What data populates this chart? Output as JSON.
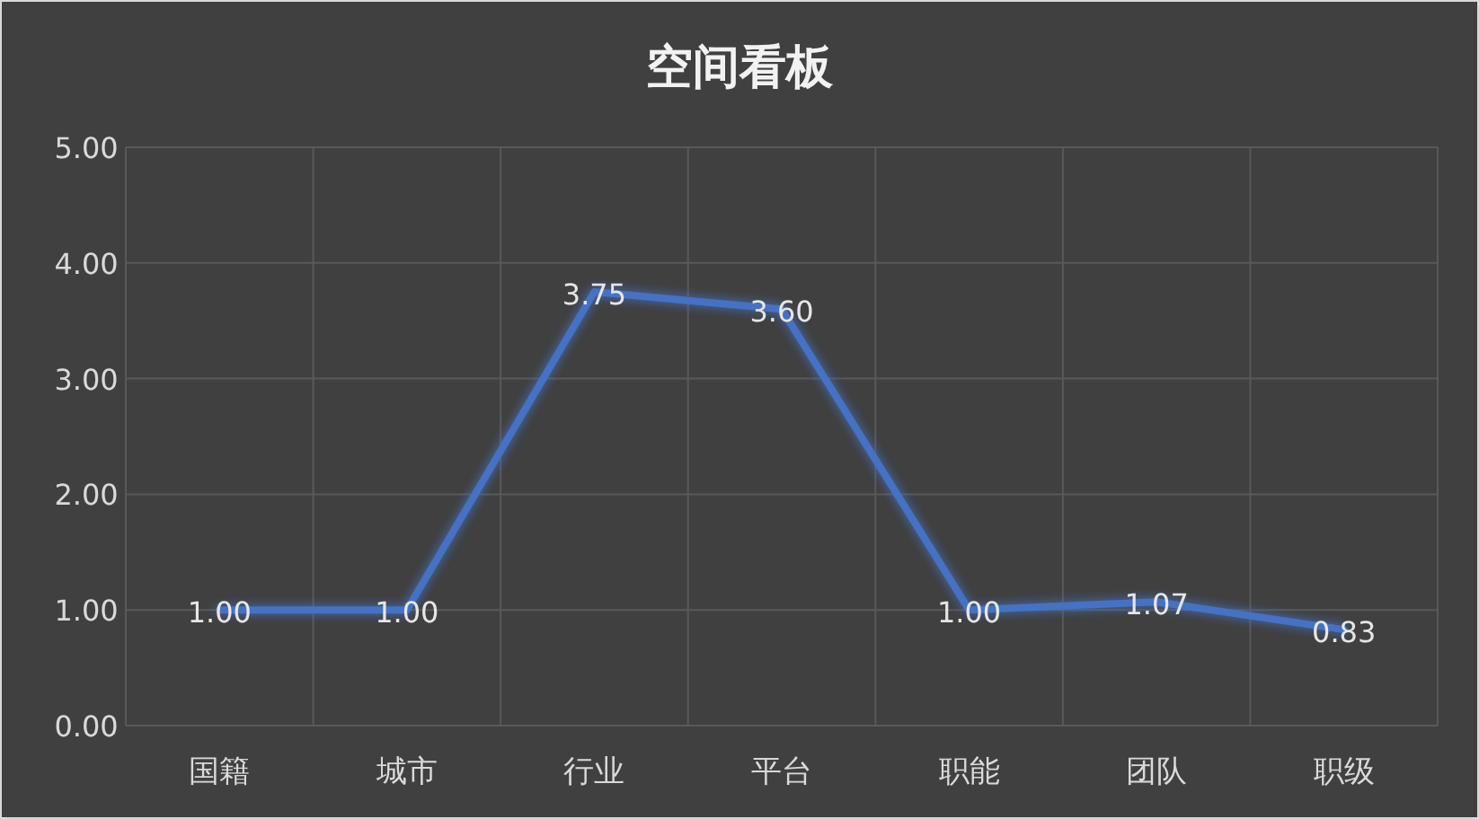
{
  "chart_data": {
    "type": "line",
    "title": "空间看板",
    "categories": [
      "国籍",
      "城市",
      "行业",
      "平台",
      "职能",
      "团队",
      "职级"
    ],
    "values": [
      1.0,
      1.0,
      3.75,
      3.6,
      1.0,
      1.07,
      0.83
    ],
    "value_labels": [
      "1.00",
      "1.00",
      "3.75",
      "3.60",
      "1.00",
      "1.07",
      "0.83"
    ],
    "color": "#4472c4",
    "ylim": [
      0,
      5
    ],
    "yticks": [
      {
        "value": 0,
        "label": "0.00"
      },
      {
        "value": 1,
        "label": "1.00"
      },
      {
        "value": 2,
        "label": "2.00"
      },
      {
        "value": 3,
        "label": "3.00"
      },
      {
        "value": 4,
        "label": "4.00"
      },
      {
        "value": 5,
        "label": "5.00"
      }
    ],
    "grid": true
  }
}
